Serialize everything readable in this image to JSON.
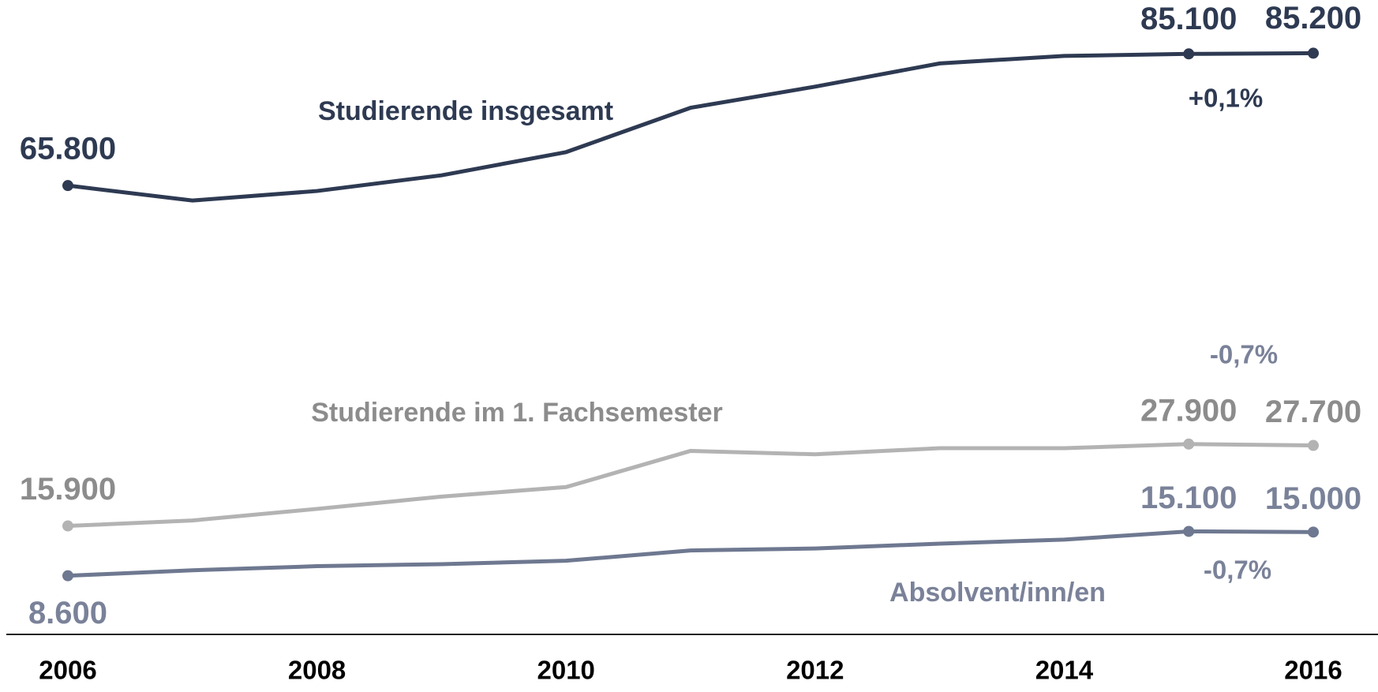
{
  "chart_data": {
    "type": "line",
    "x": [
      2006,
      2007,
      2008,
      2009,
      2010,
      2011,
      2012,
      2013,
      2014,
      2015,
      2016
    ],
    "xlim": [
      2006,
      2016
    ],
    "xticks": [
      2006,
      2008,
      2010,
      2012,
      2014,
      2016
    ],
    "ylim": [
      0,
      93000
    ],
    "grid": false,
    "series": [
      {
        "name": "Studierende insgesamt",
        "color": "#2e3a52",
        "label_color": "#2e3a52",
        "values": [
          65800,
          63600,
          65000,
          67300,
          70700,
          77200,
          80300,
          83700,
          84800,
          85100,
          85200
        ],
        "value_labels": [
          "65.800",
          null,
          null,
          null,
          null,
          null,
          null,
          null,
          null,
          "85.100",
          "85.200"
        ]
      },
      {
        "name": "Studierende im 1. Fachsemester",
        "color": "#b3b3b3",
        "label_color": "#8c8c8c",
        "values": [
          15900,
          16700,
          18400,
          20200,
          21600,
          26900,
          26400,
          27300,
          27300,
          27900,
          27700
        ],
        "value_labels": [
          "15.900",
          null,
          null,
          null,
          null,
          null,
          null,
          null,
          null,
          "27.900",
          "27.700"
        ]
      },
      {
        "name": "Absolvent/inn/en",
        "color": "#6e7890",
        "label_color": "#7a8299",
        "values": [
          8600,
          9400,
          10000,
          10300,
          10800,
          12300,
          12600,
          13300,
          13900,
          15100,
          15000
        ],
        "value_labels": [
          "8.600",
          null,
          null,
          null,
          null,
          null,
          null,
          null,
          null,
          "15.100",
          "15.000"
        ]
      }
    ],
    "annotations": [
      "+0,1%",
      "-0,7%",
      "-0,7%"
    ]
  }
}
